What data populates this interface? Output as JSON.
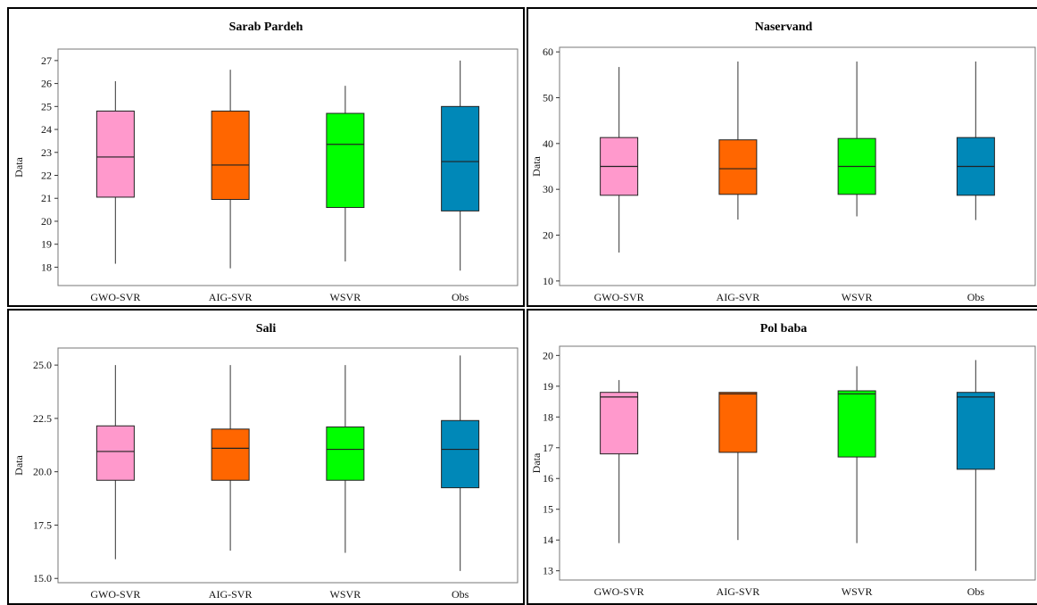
{
  "colors": {
    "GWO-SVR": "#ff99cc",
    "AIG-SVR": "#ff6600",
    "WSVR": "#00ff00",
    "Obs": "#0088b8"
  },
  "chart_data": [
    {
      "type": "box",
      "title": "Sarab Pardeh",
      "ylabel": "Data",
      "categories": [
        "GWO-SVR",
        "AIG-SVR",
        "WSVR",
        "Obs"
      ],
      "yticks": [
        "18",
        "19",
        "20",
        "21",
        "22",
        "23",
        "24",
        "25",
        "26",
        "27"
      ],
      "ylim": [
        17.2,
        27.5
      ],
      "boxes": [
        {
          "min": 18.15,
          "q1": 21.05,
          "median": 22.8,
          "q3": 24.8,
          "max": 26.1
        },
        {
          "min": 17.95,
          "q1": 20.95,
          "median": 22.45,
          "q3": 24.8,
          "max": 26.6
        },
        {
          "min": 18.25,
          "q1": 20.6,
          "median": 23.35,
          "q3": 24.7,
          "max": 25.9
        },
        {
          "min": 17.85,
          "q1": 20.45,
          "median": 22.6,
          "q3": 25.0,
          "max": 27.0
        }
      ]
    },
    {
      "type": "box",
      "title": "Naservand",
      "ylabel": "Data",
      "categories": [
        "GWO-SVR",
        "AIG-SVR",
        "WSVR",
        "Obs"
      ],
      "yticks": [
        "10",
        "20",
        "30",
        "40",
        "50",
        "60"
      ],
      "ylim": [
        9,
        61
      ],
      "boxes": [
        {
          "min": 16.2,
          "q1": 28.7,
          "median": 35.0,
          "q3": 41.3,
          "max": 56.7
        },
        {
          "min": 23.4,
          "q1": 28.9,
          "median": 34.5,
          "q3": 40.8,
          "max": 57.9
        },
        {
          "min": 24.1,
          "q1": 28.9,
          "median": 35.0,
          "q3": 41.1,
          "max": 57.9
        },
        {
          "min": 23.3,
          "q1": 28.7,
          "median": 35.0,
          "q3": 41.3,
          "max": 57.9
        }
      ]
    },
    {
      "type": "box",
      "title": "Sali",
      "ylabel": "Data",
      "categories": [
        "GWO-SVR",
        "AIG-SVR",
        "WSVR",
        "Obs"
      ],
      "yticks": [
        "15.0",
        "17.5",
        "20.0",
        "22.5",
        "25.0"
      ],
      "ylim": [
        14.8,
        25.8
      ],
      "boxes": [
        {
          "min": 15.9,
          "q1": 19.6,
          "median": 20.95,
          "q3": 22.15,
          "max": 25.0
        },
        {
          "min": 16.3,
          "q1": 19.6,
          "median": 21.1,
          "q3": 22.0,
          "max": 25.0
        },
        {
          "min": 16.2,
          "q1": 19.6,
          "median": 21.05,
          "q3": 22.1,
          "max": 25.0
        },
        {
          "min": 15.35,
          "q1": 19.25,
          "median": 21.05,
          "q3": 22.4,
          "max": 25.45
        }
      ]
    },
    {
      "type": "box",
      "title": "Pol baba",
      "ylabel": "Data",
      "categories": [
        "GWO-SVR",
        "AIG-SVR",
        "WSVR",
        "Obs"
      ],
      "yticks": [
        "13",
        "14",
        "15",
        "16",
        "17",
        "18",
        "19",
        "20"
      ],
      "ylim": [
        12.7,
        20.3
      ],
      "boxes": [
        {
          "min": 13.9,
          "q1": 16.8,
          "median": 18.65,
          "q3": 18.8,
          "max": 19.2
        },
        {
          "min": 14.0,
          "q1": 16.85,
          "median": 18.75,
          "q3": 18.8,
          "max": 18.8
        },
        {
          "min": 13.9,
          "q1": 16.7,
          "median": 18.75,
          "q3": 18.85,
          "max": 19.65
        },
        {
          "min": 13.0,
          "q1": 16.3,
          "median": 18.65,
          "q3": 18.8,
          "max": 19.85
        }
      ]
    }
  ]
}
